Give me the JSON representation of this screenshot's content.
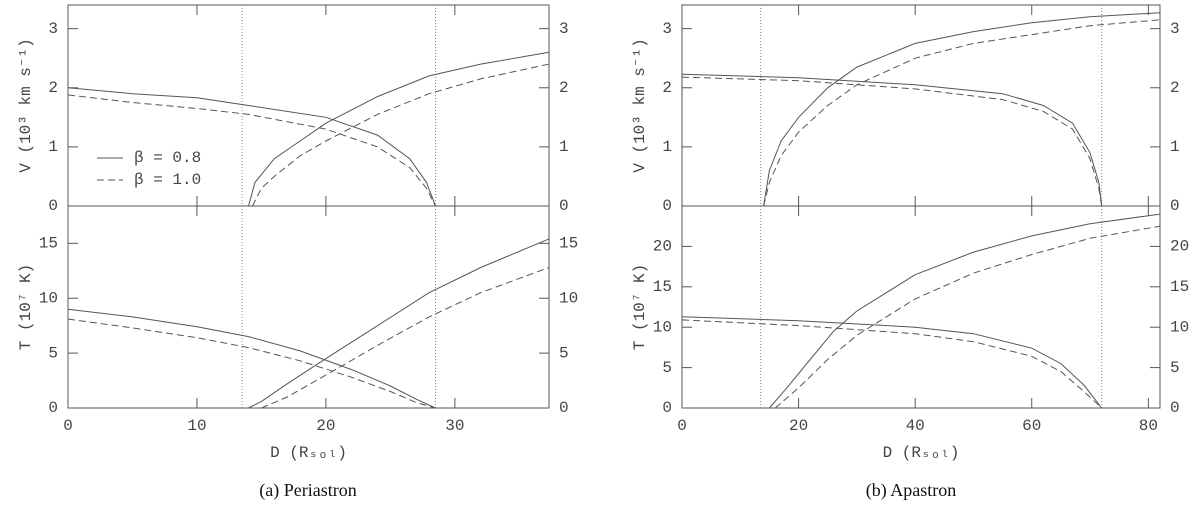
{
  "captions": [
    "(a) Periastron",
    "(b) Apastron"
  ],
  "chart_data": [
    {
      "type": "line",
      "ylabel": "V (10³ km s⁻¹)",
      "xlim": [
        0,
        37.3
      ],
      "xticks": [
        0,
        10,
        20,
        30
      ],
      "ylim": [
        0,
        3.4
      ],
      "yticks": [
        0,
        1,
        2,
        3
      ],
      "vlines": [
        13.5,
        28.5
      ],
      "legend": "lower-left",
      "series": [
        {
          "name": "β = 0.8",
          "color": "#555",
          "dash": false,
          "x": [
            0,
            5,
            10,
            14,
            20,
            24,
            26.5,
            27.8,
            28.5
          ],
          "values": [
            2.0,
            1.9,
            1.83,
            1.7,
            1.5,
            1.2,
            0.8,
            0.4,
            0
          ]
        },
        {
          "name": "β = 1.0",
          "color": "#555",
          "dash": true,
          "x": [
            0,
            5,
            10,
            14,
            20,
            24,
            26.5,
            27.8,
            28.5
          ],
          "values": [
            1.88,
            1.75,
            1.65,
            1.55,
            1.3,
            1.0,
            0.65,
            0.3,
            0
          ]
        },
        {
          "color": "#555",
          "dash": false,
          "x": [
            14,
            14.5,
            16,
            18,
            20,
            24,
            28,
            32,
            37.3
          ],
          "values": [
            0,
            0.4,
            0.8,
            1.1,
            1.4,
            1.85,
            2.2,
            2.4,
            2.6
          ]
        },
        {
          "color": "#555",
          "dash": true,
          "x": [
            14.3,
            15,
            16,
            18,
            20,
            24,
            28,
            32,
            37.3
          ],
          "values": [
            0,
            0.3,
            0.5,
            0.85,
            1.1,
            1.55,
            1.9,
            2.15,
            2.4
          ]
        }
      ]
    },
    {
      "type": "line",
      "ylabel": "T (10⁷ K)",
      "xlabel": "D (Rₛₒₗ)",
      "xlim": [
        0,
        37.3
      ],
      "xticks": [
        0,
        10,
        20,
        30
      ],
      "ylim": [
        0,
        18.4
      ],
      "yticks": [
        0,
        5,
        10,
        15
      ],
      "vlines": [
        13.5,
        28.5
      ],
      "series": [
        {
          "color": "#555",
          "dash": false,
          "x": [
            0,
            5,
            10,
            14,
            18,
            22,
            25,
            27,
            28.5
          ],
          "values": [
            9,
            8.3,
            7.4,
            6.5,
            5.2,
            3.5,
            2,
            0.8,
            0
          ]
        },
        {
          "color": "#555",
          "dash": true,
          "x": [
            0,
            5,
            10,
            14,
            18,
            22,
            25,
            27,
            28.5
          ],
          "values": [
            8.1,
            7.3,
            6.4,
            5.5,
            4.3,
            2.8,
            1.5,
            0.5,
            0
          ]
        },
        {
          "color": "#555",
          "dash": false,
          "x": [
            14,
            15,
            17,
            20,
            24,
            28,
            32,
            37.3
          ],
          "values": [
            0,
            0.6,
            2.2,
            4.5,
            7.5,
            10.5,
            12.8,
            15.4
          ]
        },
        {
          "color": "#555",
          "dash": true,
          "x": [
            15,
            17,
            20,
            24,
            28,
            32,
            37.3
          ],
          "values": [
            0,
            1,
            3,
            5.7,
            8.3,
            10.5,
            12.8
          ]
        }
      ]
    },
    {
      "type": "line",
      "ylabel": "V (10³ km s⁻¹)",
      "xlim": [
        0,
        82
      ],
      "xticks": [
        0,
        20,
        40,
        60,
        80
      ],
      "ylim": [
        0,
        3.4
      ],
      "yticks": [
        0,
        1,
        2,
        3
      ],
      "vlines": [
        13.5,
        72
      ],
      "series": [
        {
          "color": "#555",
          "dash": false,
          "x": [
            0,
            20,
            40,
            55,
            62,
            67,
            70,
            71.5,
            72
          ],
          "values": [
            2.23,
            2.17,
            2.05,
            1.9,
            1.7,
            1.4,
            0.9,
            0.4,
            0
          ]
        },
        {
          "color": "#555",
          "dash": true,
          "x": [
            0,
            20,
            40,
            55,
            62,
            67,
            70,
            71.5,
            72
          ],
          "values": [
            2.18,
            2.12,
            1.98,
            1.8,
            1.6,
            1.3,
            0.8,
            0.3,
            0
          ]
        },
        {
          "color": "#555",
          "dash": false,
          "x": [
            14,
            15,
            17,
            20,
            25,
            30,
            40,
            50,
            60,
            70,
            82
          ],
          "values": [
            0,
            0.6,
            1.1,
            1.5,
            2.0,
            2.35,
            2.75,
            2.95,
            3.1,
            3.2,
            3.27
          ]
        },
        {
          "color": "#555",
          "dash": true,
          "x": [
            14,
            15,
            17,
            20,
            25,
            30,
            40,
            50,
            60,
            70,
            82
          ],
          "values": [
            0,
            0.4,
            0.85,
            1.25,
            1.7,
            2.05,
            2.5,
            2.75,
            2.9,
            3.05,
            3.15
          ]
        }
      ]
    },
    {
      "type": "line",
      "ylabel": "T (10⁷ K)",
      "xlabel": "D (Rₛₒₗ)",
      "xlim": [
        0,
        82
      ],
      "xticks": [
        0,
        20,
        40,
        60,
        80
      ],
      "ylim": [
        0,
        25
      ],
      "yticks": [
        0,
        5,
        10,
        15,
        20
      ],
      "vlines": [
        13.5,
        72
      ],
      "series": [
        {
          "color": "#555",
          "dash": false,
          "x": [
            0,
            20,
            40,
            50,
            60,
            65,
            69,
            72
          ],
          "values": [
            11.3,
            10.8,
            10,
            9.2,
            7.4,
            5.5,
            2.8,
            0
          ]
        },
        {
          "color": "#555",
          "dash": true,
          "x": [
            0,
            20,
            40,
            50,
            60,
            65,
            69,
            72
          ],
          "values": [
            10.9,
            10.2,
            9.2,
            8.2,
            6.4,
            4.5,
            2,
            0
          ]
        },
        {
          "color": "#555",
          "dash": false,
          "x": [
            15,
            18,
            22,
            26,
            30,
            40,
            50,
            60,
            70,
            82
          ],
          "values": [
            0,
            2.5,
            6,
            9.5,
            12,
            16.5,
            19.3,
            21.3,
            22.8,
            24
          ]
        },
        {
          "color": "#555",
          "dash": true,
          "x": [
            16,
            20,
            25,
            30,
            40,
            50,
            60,
            70,
            82
          ],
          "values": [
            0,
            2.5,
            6,
            9,
            13.5,
            16.7,
            19,
            21,
            22.5
          ]
        }
      ]
    }
  ]
}
